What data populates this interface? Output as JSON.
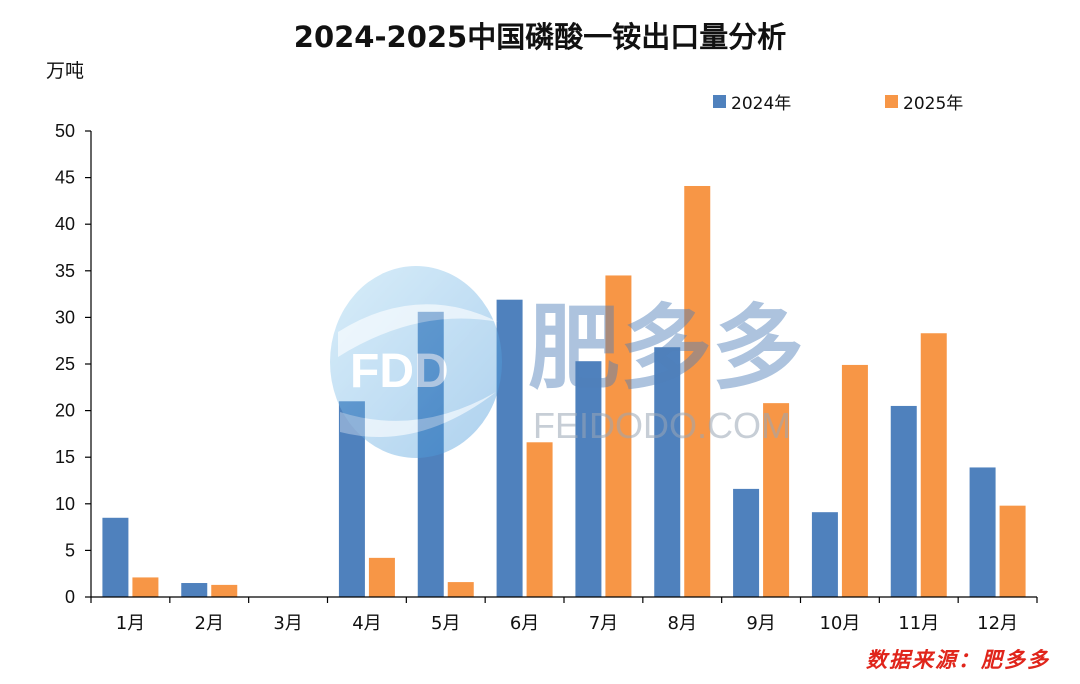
{
  "colors": {
    "s2024": "#4f81bd",
    "s2025": "#f79646",
    "axis": "#000000",
    "source": "#e0251b"
  },
  "watermark": {
    "logo": "FDD",
    "brand": "肥多多",
    "site": "FEIDODO.COM"
  },
  "chart_data": {
    "type": "bar",
    "title": "2024-2025中国磷酸一铵出口量分析",
    "ylabel": "万吨",
    "xlabel": "",
    "ylim": [
      0,
      50
    ],
    "yticks": [
      0,
      5,
      10,
      15,
      20,
      25,
      30,
      35,
      40,
      45,
      50
    ],
    "categories": [
      "1月",
      "2月",
      "3月",
      "4月",
      "5月",
      "6月",
      "7月",
      "8月",
      "9月",
      "10月",
      "11月",
      "12月"
    ],
    "series": [
      {
        "name": "2024年",
        "values": [
          8.5,
          1.5,
          0,
          21.0,
          30.6,
          31.9,
          25.3,
          26.8,
          11.6,
          9.1,
          20.5,
          13.9
        ]
      },
      {
        "name": "2025年",
        "values": [
          2.1,
          1.3,
          0,
          4.2,
          1.6,
          16.6,
          34.5,
          44.1,
          20.8,
          24.9,
          28.3,
          9.8
        ]
      }
    ],
    "legend_position": "top-right",
    "grid": false,
    "source": "数据来源：肥多多"
  }
}
